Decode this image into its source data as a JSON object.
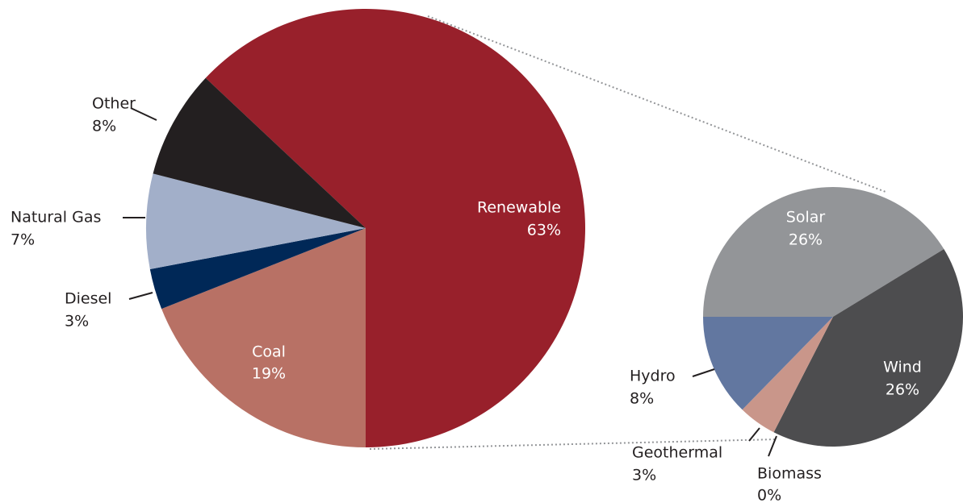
{
  "chart_data": [
    {
      "type": "pie",
      "categories": [
        "Renewable",
        "Coal",
        "Diesel",
        "Natural Gas",
        "Other"
      ],
      "values": [
        63,
        19,
        3,
        7,
        8
      ],
      "value_labels": [
        "63%",
        "19%",
        "3%",
        "7%",
        "8%"
      ],
      "colors": [
        "#98202b",
        "#b87165",
        "#002857",
        "#a2afc9",
        "#231f20"
      ]
    },
    {
      "type": "pie",
      "categories": [
        "Solar",
        "Wind",
        "Biomass",
        "Geothermal",
        "Hydro"
      ],
      "values": [
        26,
        26,
        0,
        3,
        8
      ],
      "value_labels": [
        "26%",
        "26%",
        "0%",
        "3%",
        "8%"
      ],
      "colors": [
        "#939598",
        "#4d4d4f",
        "#7a4a44",
        "#c9968a",
        "#6277a0"
      ]
    }
  ]
}
